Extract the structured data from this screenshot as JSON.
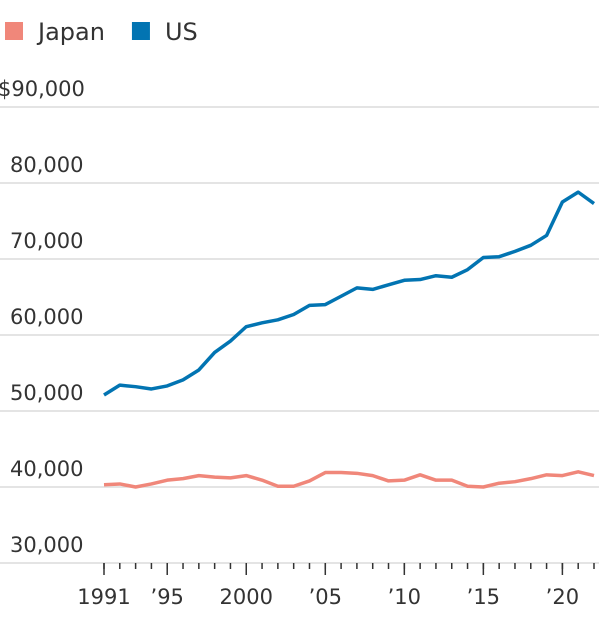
{
  "chart_data": {
    "type": "line",
    "x": [
      1991,
      1992,
      1993,
      1994,
      1995,
      1996,
      1997,
      1998,
      1999,
      2000,
      2001,
      2002,
      2003,
      2004,
      2005,
      2006,
      2007,
      2008,
      2009,
      2010,
      2011,
      2012,
      2013,
      2014,
      2015,
      2016,
      2017,
      2018,
      2019,
      2020,
      2021,
      2022
    ],
    "series": [
      {
        "name": "Japan",
        "color": "#f0877a",
        "values": [
          40300,
          40400,
          40000,
          40400,
          40900,
          41100,
          41500,
          41300,
          41200,
          41500,
          40900,
          40100,
          40100,
          40800,
          41900,
          41900,
          41800,
          41500,
          40800,
          40900,
          41600,
          40900,
          40900,
          40100,
          40000,
          40500,
          40700,
          41100,
          41600,
          41500,
          42000,
          41500
        ]
      },
      {
        "name": "US",
        "color": "#0274b2",
        "values": [
          52100,
          53400,
          53200,
          52900,
          53300,
          54100,
          55400,
          57700,
          59200,
          61100,
          61600,
          62000,
          62700,
          63900,
          64000,
          65100,
          66200,
          66000,
          66600,
          67200,
          67300,
          67800,
          67600,
          68600,
          70200,
          70300,
          71000,
          71800,
          73100,
          77500,
          78800,
          77300
        ]
      }
    ],
    "xlim": [
      1991,
      2022
    ],
    "xticks": [
      1991,
      {
        "value": 1995,
        "label": "’95"
      },
      2000,
      {
        "value": 2005,
        "label": "’05"
      },
      {
        "value": 2010,
        "label": "’10"
      },
      {
        "value": 2015,
        "label": "’15"
      },
      {
        "value": 2020,
        "label": "’20"
      }
    ],
    "ylim": [
      30000,
      90000
    ],
    "yticks": [
      {
        "value": 30000,
        "label": "30,000"
      },
      {
        "value": 40000,
        "label": "40,000"
      },
      {
        "value": 50000,
        "label": "50,000"
      },
      {
        "value": 60000,
        "label": "60,000"
      },
      {
        "value": 70000,
        "label": "70,000"
      },
      {
        "value": 80000,
        "label": "80,000"
      },
      {
        "value": 90000,
        "label": "$90,000"
      }
    ],
    "grid": true
  }
}
